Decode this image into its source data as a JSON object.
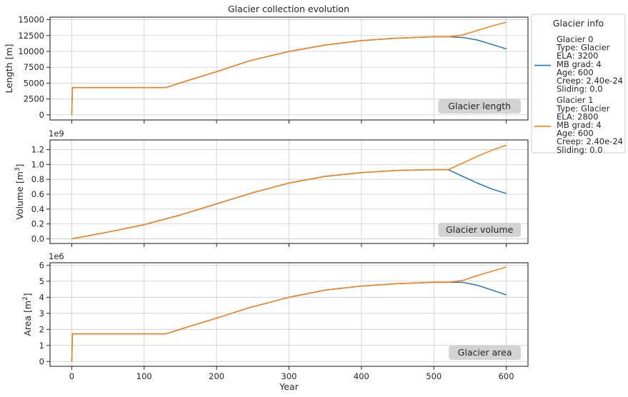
{
  "chart_data": [
    {
      "type": "line",
      "id": "length",
      "title": "Glacier collection evolution",
      "ylabel_main": "Length [m]",
      "ylabel_sup": "",
      "ylabel_tail": "",
      "multiplier": "",
      "badge": "Glacier length",
      "ylim": [
        -800,
        15400
      ],
      "xlim": [
        -30,
        630
      ],
      "yticks": [
        0,
        2500,
        5000,
        7500,
        10000,
        12500,
        15000
      ],
      "ytick_labels": [
        "0",
        "2500",
        "5000",
        "7500",
        "10000",
        "12500",
        "15000"
      ],
      "xticks": [
        0,
        100,
        200,
        300,
        400,
        500,
        600
      ],
      "show_xtick_labels": false,
      "grid": true,
      "series": [
        {
          "color": "#1f77b4",
          "x": [
            0,
            1,
            2,
            130,
            160,
            200,
            245,
            300,
            350,
            400,
            450,
            500,
            520,
            540,
            560,
            580,
            600
          ],
          "y": [
            0,
            4300,
            4300,
            4300,
            5400,
            6800,
            8500,
            10000,
            11000,
            11700,
            12100,
            12300,
            12300,
            12200,
            11800,
            11100,
            10400
          ]
        },
        {
          "color": "#ff7f0e",
          "x": [
            0,
            1,
            2,
            130,
            160,
            200,
            245,
            300,
            350,
            400,
            450,
            500,
            520,
            540,
            560,
            580,
            600
          ],
          "y": [
            0,
            4300,
            4300,
            4300,
            5400,
            6800,
            8500,
            10000,
            11000,
            11700,
            12100,
            12300,
            12300,
            12600,
            13300,
            14000,
            14600
          ]
        }
      ]
    },
    {
      "type": "line",
      "id": "volume",
      "title": "",
      "ylabel_main": "Volume [m",
      "ylabel_sup": "3",
      "ylabel_tail": "]",
      "multiplier": "1e9",
      "badge": "Glacier volume",
      "ylim": [
        -0.063,
        1.33
      ],
      "xlim": [
        -30,
        630
      ],
      "yticks": [
        0,
        0.2,
        0.4,
        0.6,
        0.8,
        1.0,
        1.2
      ],
      "ytick_labels": [
        "0.0",
        "0.2",
        "0.4",
        "0.6",
        "0.8",
        "1.0",
        "1.2"
      ],
      "xticks": [
        0,
        100,
        200,
        300,
        400,
        500,
        600
      ],
      "show_xtick_labels": false,
      "grid": true,
      "series": [
        {
          "color": "#1f77b4",
          "x": [
            0,
            50,
            100,
            150,
            200,
            250,
            300,
            350,
            400,
            450,
            500,
            520,
            540,
            560,
            580,
            600
          ],
          "y": [
            0,
            0.09,
            0.19,
            0.32,
            0.47,
            0.62,
            0.75,
            0.84,
            0.89,
            0.92,
            0.93,
            0.93,
            0.84,
            0.75,
            0.67,
            0.61
          ]
        },
        {
          "color": "#ff7f0e",
          "x": [
            0,
            50,
            100,
            150,
            200,
            250,
            300,
            350,
            400,
            450,
            500,
            520,
            540,
            560,
            580,
            600
          ],
          "y": [
            0,
            0.09,
            0.19,
            0.32,
            0.47,
            0.62,
            0.75,
            0.84,
            0.89,
            0.92,
            0.93,
            0.93,
            1.02,
            1.11,
            1.19,
            1.26
          ]
        }
      ]
    },
    {
      "type": "line",
      "id": "area",
      "title": "",
      "ylabel_main": "Area [m",
      "ylabel_sup": "2",
      "ylabel_tail": "]",
      "multiplier": "1e6",
      "badge": "Glacier area",
      "ylim": [
        -0.3,
        6.15
      ],
      "xlim": [
        -30,
        630
      ],
      "yticks": [
        0,
        1,
        2,
        3,
        4,
        5,
        6
      ],
      "ytick_labels": [
        "0",
        "1",
        "2",
        "3",
        "4",
        "5",
        "6"
      ],
      "xticks": [
        0,
        100,
        200,
        300,
        400,
        500,
        600
      ],
      "xtick_labels": [
        "0",
        "100",
        "200",
        "300",
        "400",
        "500",
        "600"
      ],
      "show_xtick_labels": true,
      "xlabel": "Year",
      "grid": true,
      "series": [
        {
          "color": "#1f77b4",
          "x": [
            0,
            1,
            2,
            130,
            160,
            200,
            245,
            300,
            350,
            400,
            450,
            500,
            520,
            540,
            560,
            580,
            600
          ],
          "y": [
            0,
            1.72,
            1.72,
            1.72,
            2.15,
            2.7,
            3.35,
            4.0,
            4.45,
            4.7,
            4.85,
            4.93,
            4.93,
            4.93,
            4.75,
            4.45,
            4.15
          ]
        },
        {
          "color": "#ff7f0e",
          "x": [
            0,
            1,
            2,
            130,
            160,
            200,
            245,
            300,
            350,
            400,
            450,
            500,
            520,
            540,
            560,
            580,
            600
          ],
          "y": [
            0,
            1.72,
            1.72,
            1.72,
            2.15,
            2.7,
            3.35,
            4.0,
            4.45,
            4.7,
            4.85,
            4.93,
            4.93,
            5.05,
            5.35,
            5.62,
            5.88
          ]
        }
      ]
    }
  ],
  "legend": {
    "title": "Glacier info",
    "placement": "outside-right",
    "entries": [
      {
        "color": "#1f77b4",
        "lines": [
          "Glacier 0",
          "Type: Glacier",
          "ELA: 3200",
          "MB grad: 4",
          "Age: 600",
          "Creep: 2.40e-24",
          "Sliding: 0.0"
        ]
      },
      {
        "color": "#ff7f0e",
        "lines": [
          "Glacier 1",
          "Type: Glacier",
          "ELA: 2800",
          "MB grad: 4",
          "Age: 600",
          "Creep: 2.40e-24",
          "Sliding: 0.0"
        ]
      }
    ]
  }
}
